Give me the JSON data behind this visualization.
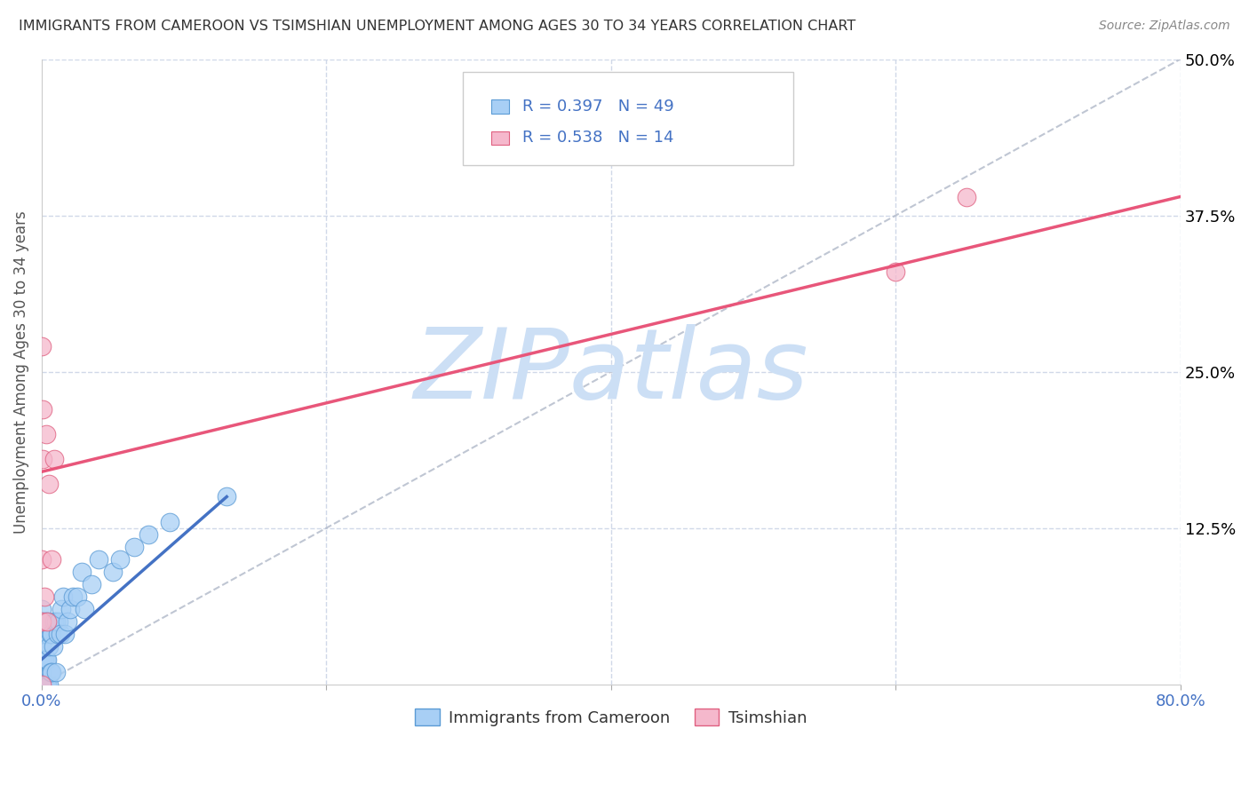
{
  "title": "IMMIGRANTS FROM CAMEROON VS TSIMSHIAN UNEMPLOYMENT AMONG AGES 30 TO 34 YEARS CORRELATION CHART",
  "source": "Source: ZipAtlas.com",
  "ylabel": "Unemployment Among Ages 30 to 34 years",
  "xlim": [
    0,
    0.8
  ],
  "ylim": [
    0,
    0.5
  ],
  "xticks": [
    0.0,
    0.2,
    0.4,
    0.6,
    0.8
  ],
  "yticks": [
    0.0,
    0.125,
    0.25,
    0.375,
    0.5
  ],
  "blue_R": 0.397,
  "blue_N": 49,
  "pink_R": 0.538,
  "pink_N": 14,
  "blue_color": "#A8CFF5",
  "pink_color": "#F5B8CC",
  "blue_edge_color": "#5B9BD5",
  "pink_edge_color": "#E06080",
  "blue_line_color": "#4472C4",
  "pink_line_color": "#E8567A",
  "ref_line_color": "#B0B8C8",
  "watermark": "ZIPatlas",
  "watermark_color": "#CCDFF5",
  "blue_scatter_x": [
    0.0,
    0.0,
    0.0,
    0.0,
    0.0,
    0.0,
    0.0,
    0.001,
    0.001,
    0.001,
    0.002,
    0.002,
    0.002,
    0.003,
    0.003,
    0.003,
    0.004,
    0.004,
    0.004,
    0.005,
    0.005,
    0.006,
    0.006,
    0.007,
    0.007,
    0.008,
    0.009,
    0.01,
    0.01,
    0.011,
    0.012,
    0.013,
    0.014,
    0.015,
    0.016,
    0.018,
    0.02,
    0.022,
    0.025,
    0.028,
    0.03,
    0.035,
    0.04,
    0.05,
    0.055,
    0.065,
    0.075,
    0.09,
    0.13
  ],
  "blue_scatter_y": [
    0.0,
    0.01,
    0.02,
    0.03,
    0.04,
    0.05,
    0.06,
    0.0,
    0.02,
    0.04,
    0.0,
    0.02,
    0.05,
    0.0,
    0.02,
    0.04,
    0.0,
    0.02,
    0.05,
    0.0,
    0.03,
    0.01,
    0.04,
    0.01,
    0.04,
    0.03,
    0.05,
    0.01,
    0.05,
    0.04,
    0.05,
    0.04,
    0.06,
    0.07,
    0.04,
    0.05,
    0.06,
    0.07,
    0.07,
    0.09,
    0.06,
    0.08,
    0.1,
    0.09,
    0.1,
    0.11,
    0.12,
    0.13,
    0.15
  ],
  "pink_scatter_x": [
    0.0,
    0.0,
    0.0,
    0.0,
    0.001,
    0.001,
    0.002,
    0.003,
    0.004,
    0.005,
    0.007,
    0.009,
    0.6,
    0.65
  ],
  "pink_scatter_y": [
    0.0,
    0.05,
    0.1,
    0.27,
    0.18,
    0.22,
    0.07,
    0.2,
    0.05,
    0.16,
    0.1,
    0.18,
    0.33,
    0.39
  ],
  "blue_line_x0": 0.0,
  "blue_line_x1": 0.13,
  "blue_line_y0": 0.02,
  "blue_line_y1": 0.15,
  "pink_line_x0": 0.0,
  "pink_line_x1": 0.8,
  "pink_line_y0": 0.17,
  "pink_line_y1": 0.39,
  "legend_label_blue": "Immigrants from Cameroon",
  "legend_label_pink": "Tsimshian",
  "background_color": "#FFFFFF",
  "grid_color": "#D0D8E8",
  "tick_label_color": "#4472C4",
  "title_color": "#333333",
  "source_color": "#888888"
}
